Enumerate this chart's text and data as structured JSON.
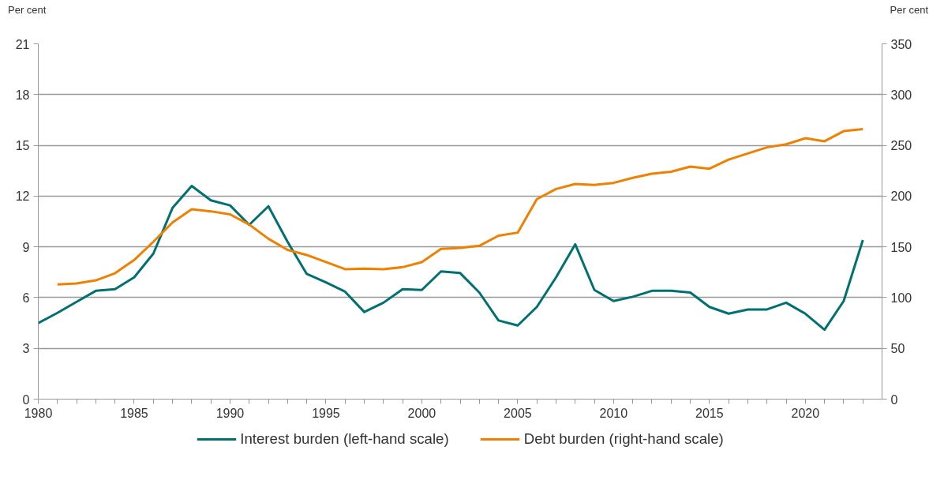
{
  "chart_data": {
    "type": "line",
    "ylabel": "Per cent",
    "y2label": "Per cent",
    "x": [
      1980,
      1981,
      1982,
      1983,
      1984,
      1985,
      1986,
      1987,
      1988,
      1989,
      1990,
      1991,
      1992,
      1993,
      1994,
      1995,
      1996,
      1997,
      1998,
      1999,
      2000,
      2001,
      2002,
      2003,
      2004,
      2005,
      2006,
      2007,
      2008,
      2009,
      2010,
      2011,
      2012,
      2013,
      2014,
      2015,
      2016,
      2017,
      2018,
      2019,
      2020,
      2021,
      2022,
      2023
    ],
    "series": [
      {
        "name": "Interest burden (left-hand scale)",
        "color": "#007070",
        "values": [
          4.5,
          5.1,
          5.75,
          6.4,
          6.5,
          7.2,
          8.6,
          11.3,
          12.6,
          11.75,
          11.45,
          10.3,
          11.4,
          9.3,
          7.4,
          6.9,
          6.35,
          5.15,
          5.7,
          6.5,
          6.45,
          7.55,
          7.45,
          6.3,
          4.65,
          4.35,
          5.45,
          7.2,
          9.15,
          6.45,
          5.8,
          6.05,
          6.4,
          6.4,
          6.3,
          5.45,
          5.05,
          5.3,
          5.3,
          5.7,
          5.05,
          4.1,
          5.8,
          9.4
        ]
      },
      {
        "name": "Debt burden (right-hand scale)",
        "color": "#f08000",
        "axis": "y2",
        "values": [
          null,
          113,
          114,
          117,
          124,
          137,
          155,
          174,
          187,
          185,
          182,
          172,
          158,
          147,
          142,
          135,
          128,
          128.5,
          128,
          130,
          135,
          148,
          149,
          151,
          161,
          164,
          197,
          207,
          212,
          211,
          213,
          218,
          222,
          224,
          229,
          227,
          236,
          242,
          248,
          251,
          257,
          254,
          264,
          266
        ]
      }
    ],
    "xlim": [
      1980,
      2024
    ],
    "xticks": [
      1980,
      1985,
      1990,
      1995,
      2000,
      2005,
      2010,
      2015,
      2020
    ],
    "ylim": [
      0,
      21
    ],
    "yticks": [
      0,
      3,
      6,
      9,
      12,
      15,
      18,
      21
    ],
    "y2lim": [
      0,
      350
    ],
    "y2ticks": [
      0,
      50,
      100,
      150,
      200,
      250,
      300,
      350
    ],
    "grid": "y",
    "legend": "bottom",
    "line_style": "solid",
    "marker": "none"
  }
}
